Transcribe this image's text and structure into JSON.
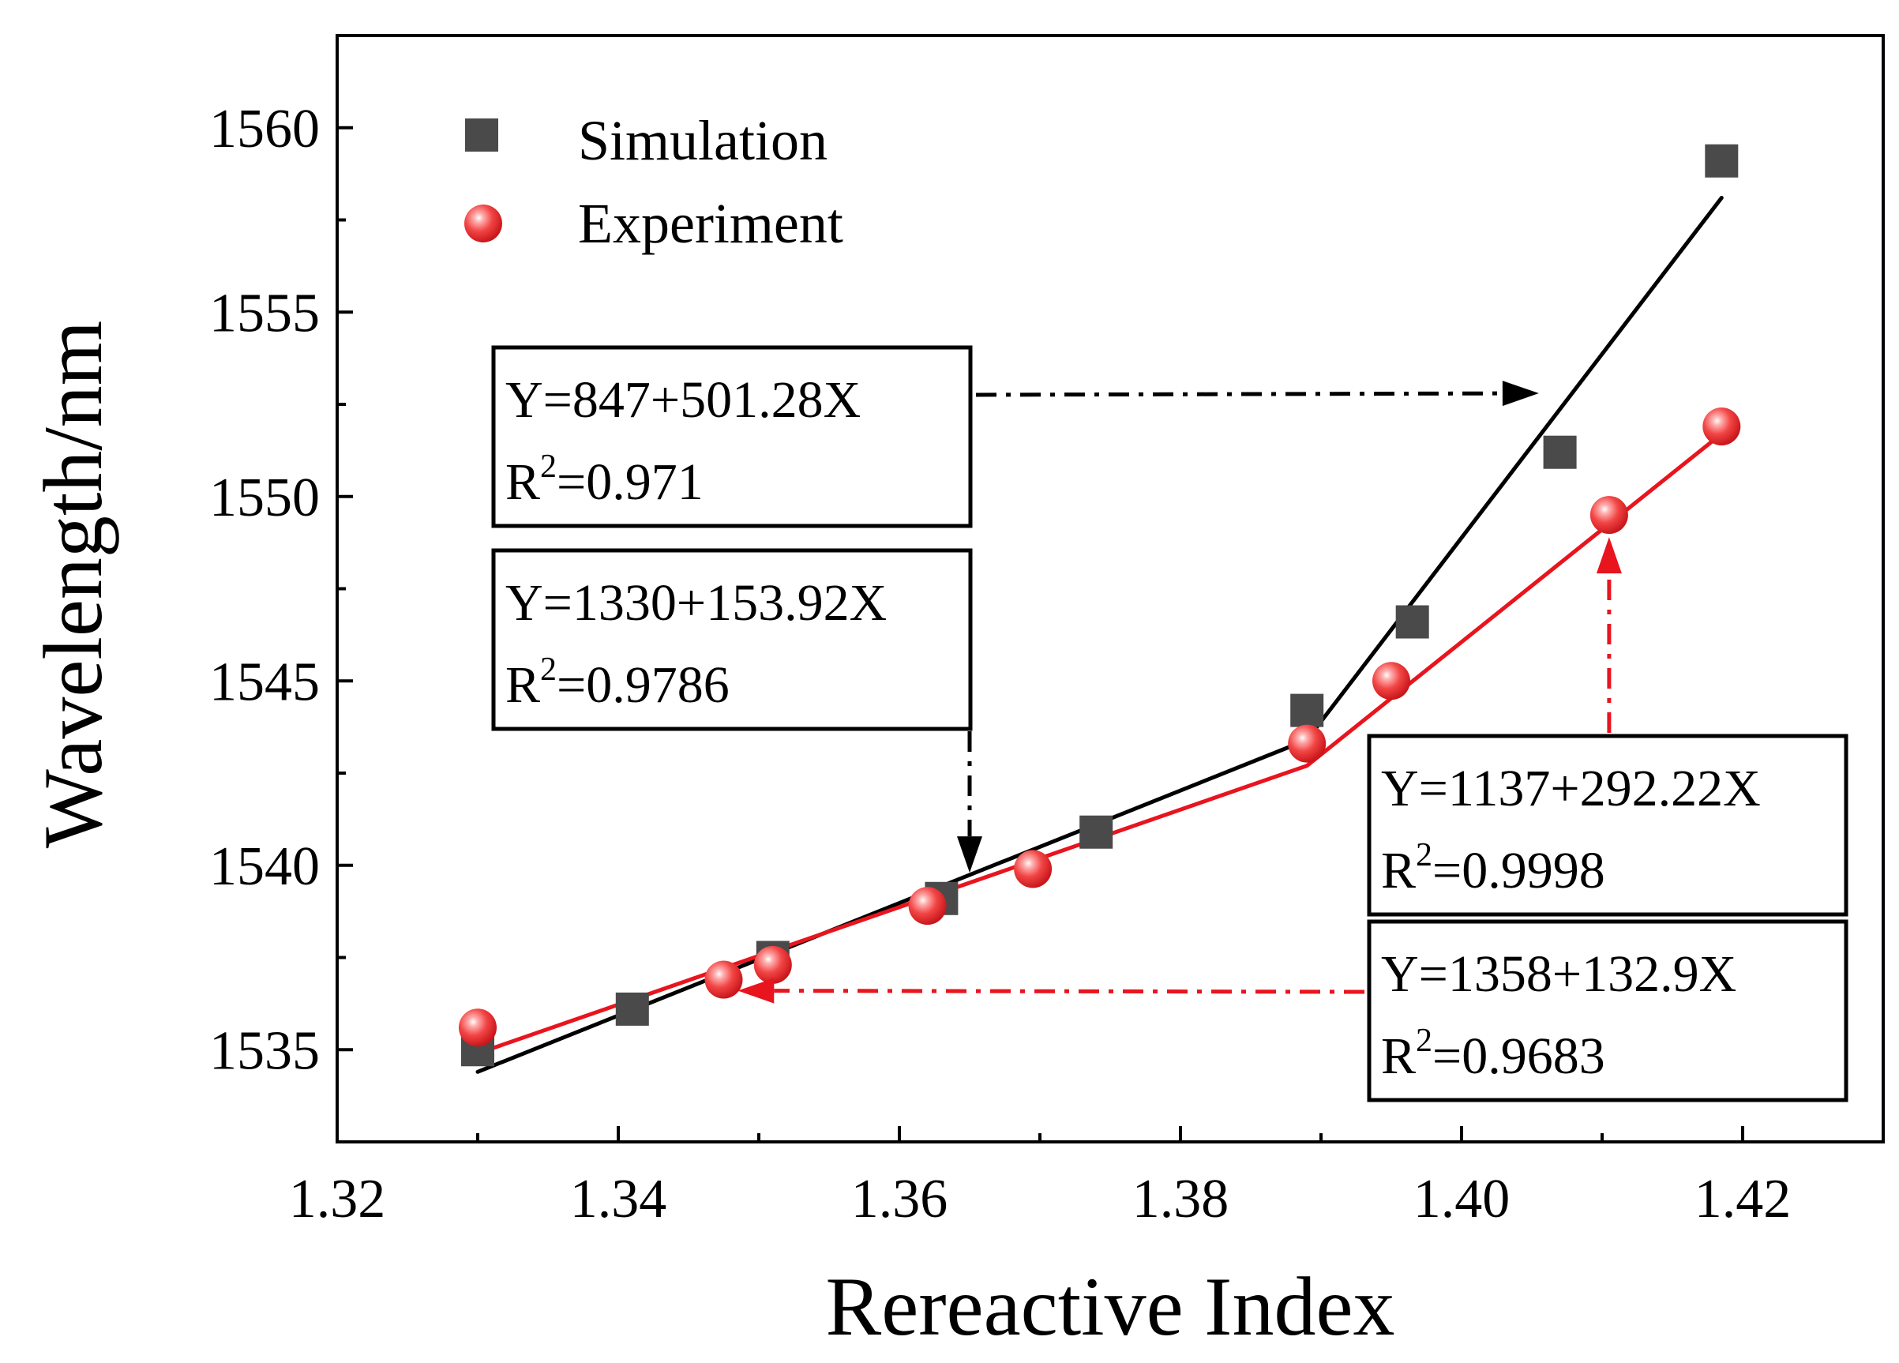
{
  "chart_data": {
    "type": "scatter",
    "title": "",
    "xlabel": "Rereactive Index",
    "ylabel": "Wavelength/nm",
    "xlim": [
      1.32,
      1.43
    ],
    "ylim": [
      1532.5,
      1562.5
    ],
    "xticks": [
      "1.32",
      "1.34",
      "1.36",
      "1.38",
      "1.40",
      "1.42"
    ],
    "xtick_values": [
      1.32,
      1.34,
      1.36,
      1.38,
      1.4,
      1.42
    ],
    "yticks": [
      "1535",
      "1540",
      "1545",
      "1550",
      "1555",
      "1560"
    ],
    "ytick_values": [
      1535,
      1540,
      1545,
      1550,
      1555,
      1560
    ],
    "grid": false,
    "legend_position": "top-left",
    "series": [
      {
        "name": "Simulation",
        "marker": "square",
        "color": "#4a4a4a",
        "x": [
          1.33,
          1.341,
          1.351,
          1.363,
          1.374,
          1.389,
          1.3965,
          1.407,
          1.4185
        ],
        "y": [
          1535.0,
          1536.1,
          1537.5,
          1539.1,
          1540.9,
          1544.2,
          1546.6,
          1551.2,
          1559.1
        ]
      },
      {
        "name": "Experiment",
        "marker": "circle",
        "color": "#e8282a",
        "x": [
          1.33,
          1.3475,
          1.351,
          1.362,
          1.3695,
          1.389,
          1.395,
          1.4105,
          1.4185
        ],
        "y": [
          1535.6,
          1536.9,
          1537.3,
          1538.9,
          1539.9,
          1543.3,
          1545.0,
          1549.5,
          1551.9
        ]
      }
    ],
    "fit_lines": [
      {
        "name": "simulation-fit-low",
        "color": "#000000",
        "x": [
          1.33,
          1.389
        ],
        "y": [
          1534.4,
          1543.4
        ]
      },
      {
        "name": "simulation-fit-high",
        "color": "#000000",
        "x": [
          1.389,
          1.4185
        ],
        "y": [
          1543.4,
          1558.1
        ]
      },
      {
        "name": "experiment-fit-low",
        "color": "#e8141e",
        "x": [
          1.33,
          1.389
        ],
        "y": [
          1534.9,
          1542.7
        ]
      },
      {
        "name": "experiment-fit-high",
        "color": "#e8141e",
        "x": [
          1.389,
          1.4185
        ],
        "y": [
          1542.7,
          1551.7
        ]
      }
    ],
    "annotations": [
      {
        "equation": "Y=847+501.28X",
        "r2_value": "=0.971",
        "color": "#000000",
        "arrow_to": [
          1.4055,
          1552.8
        ]
      },
      {
        "equation": "Y=1330+153.92X",
        "r2_value": "=0.9786",
        "color": "#000000",
        "arrow_to": [
          1.365,
          1539.8
        ]
      },
      {
        "equation": "Y=1137+292.22X",
        "r2_value": "=0.9998",
        "color": "#e8141e",
        "arrow_to": [
          1.4105,
          1548.9
        ]
      },
      {
        "equation": "Y=1358+132.9X",
        "r2_value": "=0.9683",
        "color": "#e8141e",
        "arrow_to": [
          1.3485,
          1536.6
        ]
      }
    ],
    "r2_base": "R",
    "r2_sup": "2"
  }
}
